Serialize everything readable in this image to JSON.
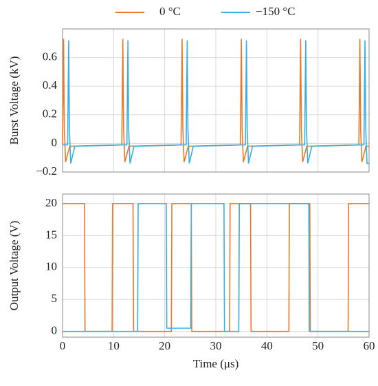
{
  "chart_data": [
    {
      "type": "line",
      "ylabel": "Burst Voltage (kV)",
      "xlim": [
        0,
        60
      ],
      "ylim": [
        -0.2,
        0.8
      ],
      "yticks": [
        {
          "value": -0.2,
          "label": "−0.2"
        },
        0,
        0.2,
        0.4,
        0.6
      ],
      "grid": true,
      "series": [
        {
          "name": "0 °C",
          "color": "#e8782a",
          "x": [
            0,
            0.2,
            0.35,
            0.6,
            1.4,
            11.6,
            11.8,
            11.95,
            12.2,
            13.0,
            23.2,
            23.4,
            23.55,
            23.8,
            24.6,
            34.8,
            35.0,
            35.15,
            35.4,
            36.2,
            46.4,
            46.6,
            46.75,
            47.0,
            47.8,
            58.0,
            58.2,
            58.35,
            58.6,
            59.4,
            60
          ],
          "values": [
            -0.01,
            0.73,
            0.1,
            -0.13,
            -0.02,
            -0.01,
            0.73,
            0.1,
            -0.13,
            -0.02,
            -0.01,
            0.73,
            0.1,
            -0.13,
            -0.02,
            -0.01,
            0.73,
            0.1,
            -0.13,
            -0.02,
            -0.01,
            0.73,
            0.1,
            -0.13,
            -0.02,
            -0.01,
            0.73,
            0.1,
            -0.13,
            -0.02,
            -0.02
          ]
        },
        {
          "name": "−150 °C",
          "color": "#3aaee0",
          "x": [
            0,
            1.0,
            1.2,
            1.35,
            1.6,
            2.4,
            12.6,
            12.8,
            12.95,
            13.2,
            14.0,
            24.2,
            24.4,
            24.55,
            24.8,
            25.6,
            35.8,
            36.0,
            36.15,
            36.4,
            37.2,
            47.4,
            47.6,
            47.75,
            48.0,
            48.8,
            59.0,
            59.2,
            59.35,
            59.6,
            60
          ],
          "values": [
            -0.01,
            -0.01,
            0.72,
            0.1,
            -0.14,
            -0.02,
            -0.01,
            0.72,
            0.1,
            -0.14,
            -0.02,
            -0.01,
            0.72,
            0.1,
            -0.14,
            -0.02,
            -0.01,
            0.72,
            0.1,
            -0.14,
            -0.02,
            -0.01,
            0.72,
            0.1,
            -0.14,
            -0.02,
            -0.01,
            0.72,
            0.1,
            -0.14,
            -0.14
          ]
        }
      ]
    },
    {
      "type": "line",
      "ylabel": "Output Voltage (V)",
      "xlabel": "Time (μs)",
      "xlim": [
        0,
        60
      ],
      "ylim": [
        -0.9,
        21.5
      ],
      "xticks": [
        0,
        10,
        20,
        30,
        40,
        50,
        60
      ],
      "yticks": [
        0,
        5,
        10,
        15,
        20
      ],
      "grid": true,
      "series": [
        {
          "name": "0 °C",
          "color": "#e8782a",
          "x": [
            0,
            4.3,
            4.4,
            9.7,
            9.8,
            13.8,
            13.9,
            21.3,
            21.4,
            25.2,
            25.3,
            32.7,
            32.8,
            36.8,
            36.9,
            44.3,
            44.4,
            48.4,
            48.5,
            55.9,
            56,
            60
          ],
          "values": [
            20,
            20,
            0,
            0,
            20,
            20,
            0,
            0,
            20,
            20,
            0,
            0,
            20,
            20,
            0,
            0,
            20,
            20,
            0,
            0,
            20,
            20
          ]
        },
        {
          "name": "−150 °C",
          "color": "#3aaee0",
          "x": [
            0,
            14.7,
            14.8,
            20.3,
            20.4,
            25.1,
            25.2,
            31.6,
            31.7,
            34.5,
            34.6,
            48.2,
            48.3,
            60
          ],
          "values": [
            0,
            0,
            20,
            20,
            0.5,
            0.5,
            20,
            20,
            0,
            0,
            20,
            20,
            0,
            0
          ]
        }
      ]
    }
  ]
}
